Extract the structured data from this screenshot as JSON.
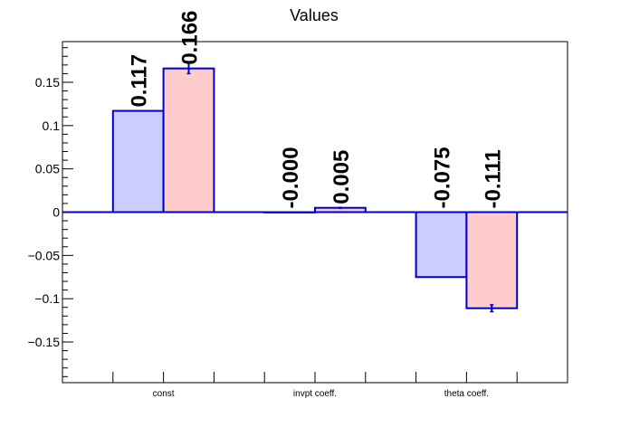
{
  "chart_data": {
    "type": "bar",
    "title": "Values",
    "xlabel": "",
    "ylabel": "",
    "categories": [
      "const",
      "invpt coeff.",
      "theta coeff."
    ],
    "ylim": [
      -0.197,
      0.197
    ],
    "grid": false,
    "legend": "none",
    "yticks": [
      -0.15,
      -0.1,
      -0.05,
      0,
      0.05,
      0.1,
      0.15
    ],
    "ytick_labels": [
      "−0.15",
      "−0.1",
      "−0.05",
      "0",
      "0.05",
      "0.1",
      "0.15"
    ],
    "series": [
      {
        "fill": "#ccccff",
        "stroke": "#0000cc",
        "values": [
          0.117,
          -0.0004,
          -0.075
        ],
        "errors": [
          0.0,
          0.0,
          0.0
        ],
        "labels": [
          "0.117",
          "-0.000",
          "-0.075"
        ]
      },
      {
        "fill": "#ffcccc",
        "stroke": "#0000cc",
        "values": [
          0.166,
          0.005,
          -0.111
        ],
        "errors": [
          0.006,
          0.0005,
          0.004
        ],
        "labels": [
          "0.166",
          "0.005",
          "-0.111"
        ]
      }
    ]
  }
}
